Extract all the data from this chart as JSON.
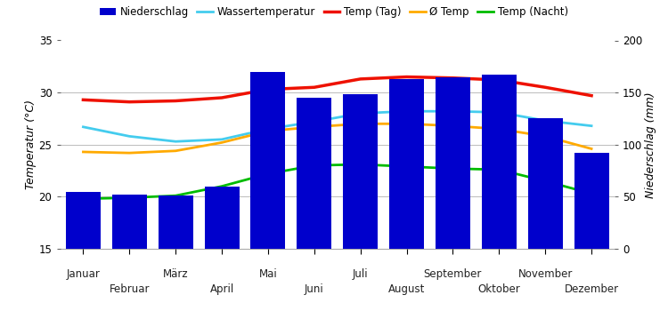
{
  "months": [
    "Januar",
    "Februar",
    "März",
    "April",
    "Mai",
    "Juni",
    "Juli",
    "August",
    "September",
    "Oktober",
    "November",
    "Dezember"
  ],
  "niederschlag_mm": [
    55,
    52,
    51,
    60,
    170,
    145,
    148,
    163,
    165,
    167,
    125,
    92
  ],
  "temp_tag": [
    29.3,
    29.1,
    29.2,
    29.5,
    30.3,
    30.5,
    31.3,
    31.5,
    31.4,
    31.2,
    30.5,
    29.7
  ],
  "wassertemperatur": [
    26.7,
    25.8,
    25.3,
    25.5,
    26.5,
    27.2,
    28.0,
    28.2,
    28.2,
    28.1,
    27.3,
    26.8
  ],
  "avg_temp": [
    24.3,
    24.2,
    24.4,
    25.2,
    26.3,
    26.7,
    27.0,
    27.0,
    26.8,
    26.5,
    25.8,
    24.6
  ],
  "temp_nacht": [
    19.8,
    19.9,
    20.1,
    21.0,
    22.2,
    23.0,
    23.1,
    22.9,
    22.7,
    22.6,
    21.5,
    20.3
  ],
  "bar_color": "#0000cc",
  "temp_tag_color": "#ee1100",
  "wassertemp_color": "#44ccee",
  "avg_temp_color": "#ffaa00",
  "temp_nacht_color": "#00bb00",
  "temp_ylim": [
    15,
    35
  ],
  "niederschlag_ylim": [
    0,
    200
  ],
  "ylabel_left": "Temperatur (°C)",
  "ylabel_right": "Niederschlag (mm)",
  "legend_labels": [
    "Niederschlag",
    "Wassertemperatur",
    "Temp (Tag)",
    "Ø Temp",
    "Temp (Nacht)"
  ],
  "background_color": "#ffffff",
  "grid_color": "#bbbbbb"
}
